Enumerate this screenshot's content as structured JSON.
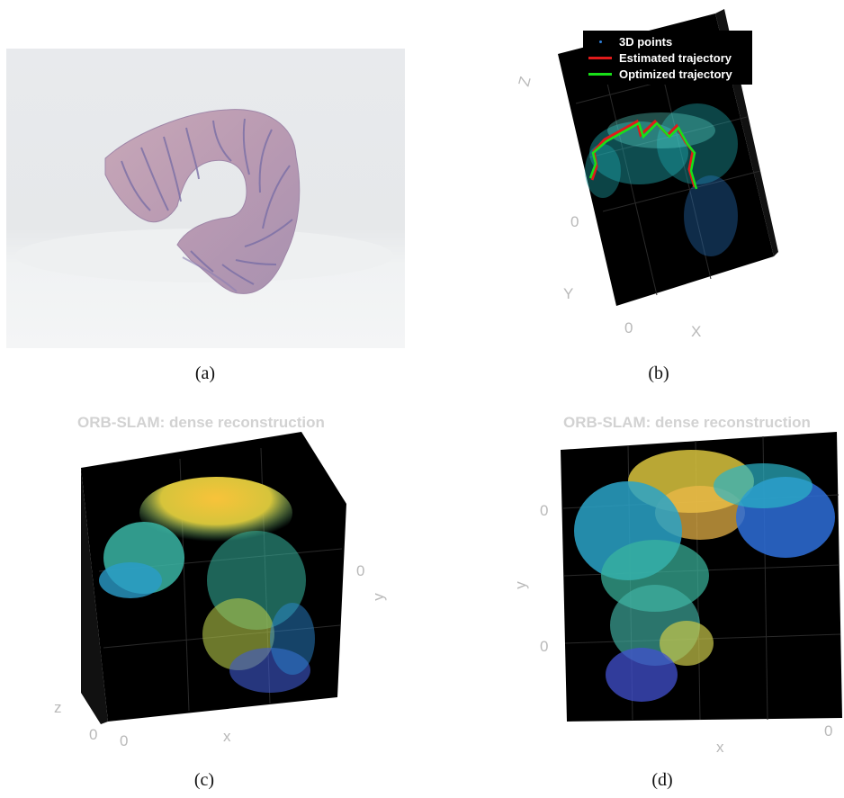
{
  "panels": {
    "a": {
      "caption": "(a)"
    },
    "b": {
      "caption": "(b)",
      "legend": [
        {
          "label": "3D points",
          "color": "#2f7fd8",
          "kind": "dot"
        },
        {
          "label": "Estimated trajectory",
          "color": "#e01b1b",
          "kind": "line"
        },
        {
          "label": "Optimized trajectory",
          "color": "#19e019",
          "kind": "line"
        }
      ],
      "axes": {
        "z_label": "Z",
        "y_label": "Y",
        "x_label": "X",
        "tick_z0": "0",
        "tick_x0": "0"
      }
    },
    "c": {
      "caption": "(c)",
      "title": "ORB-SLAM: dense reconstruction",
      "axes": {
        "y_label": "y",
        "x_label": "x",
        "z_label": "z",
        "tick_y0": "0",
        "tick_z0": "0",
        "tick_x0": "0"
      }
    },
    "d": {
      "caption": "(d)",
      "title": "ORB-SLAM: dense reconstruction",
      "axes": {
        "y_label": "y",
        "x_label": "x",
        "tick_y_top": "0",
        "tick_y_bottom": "0",
        "tick_x0": "0"
      }
    }
  }
}
